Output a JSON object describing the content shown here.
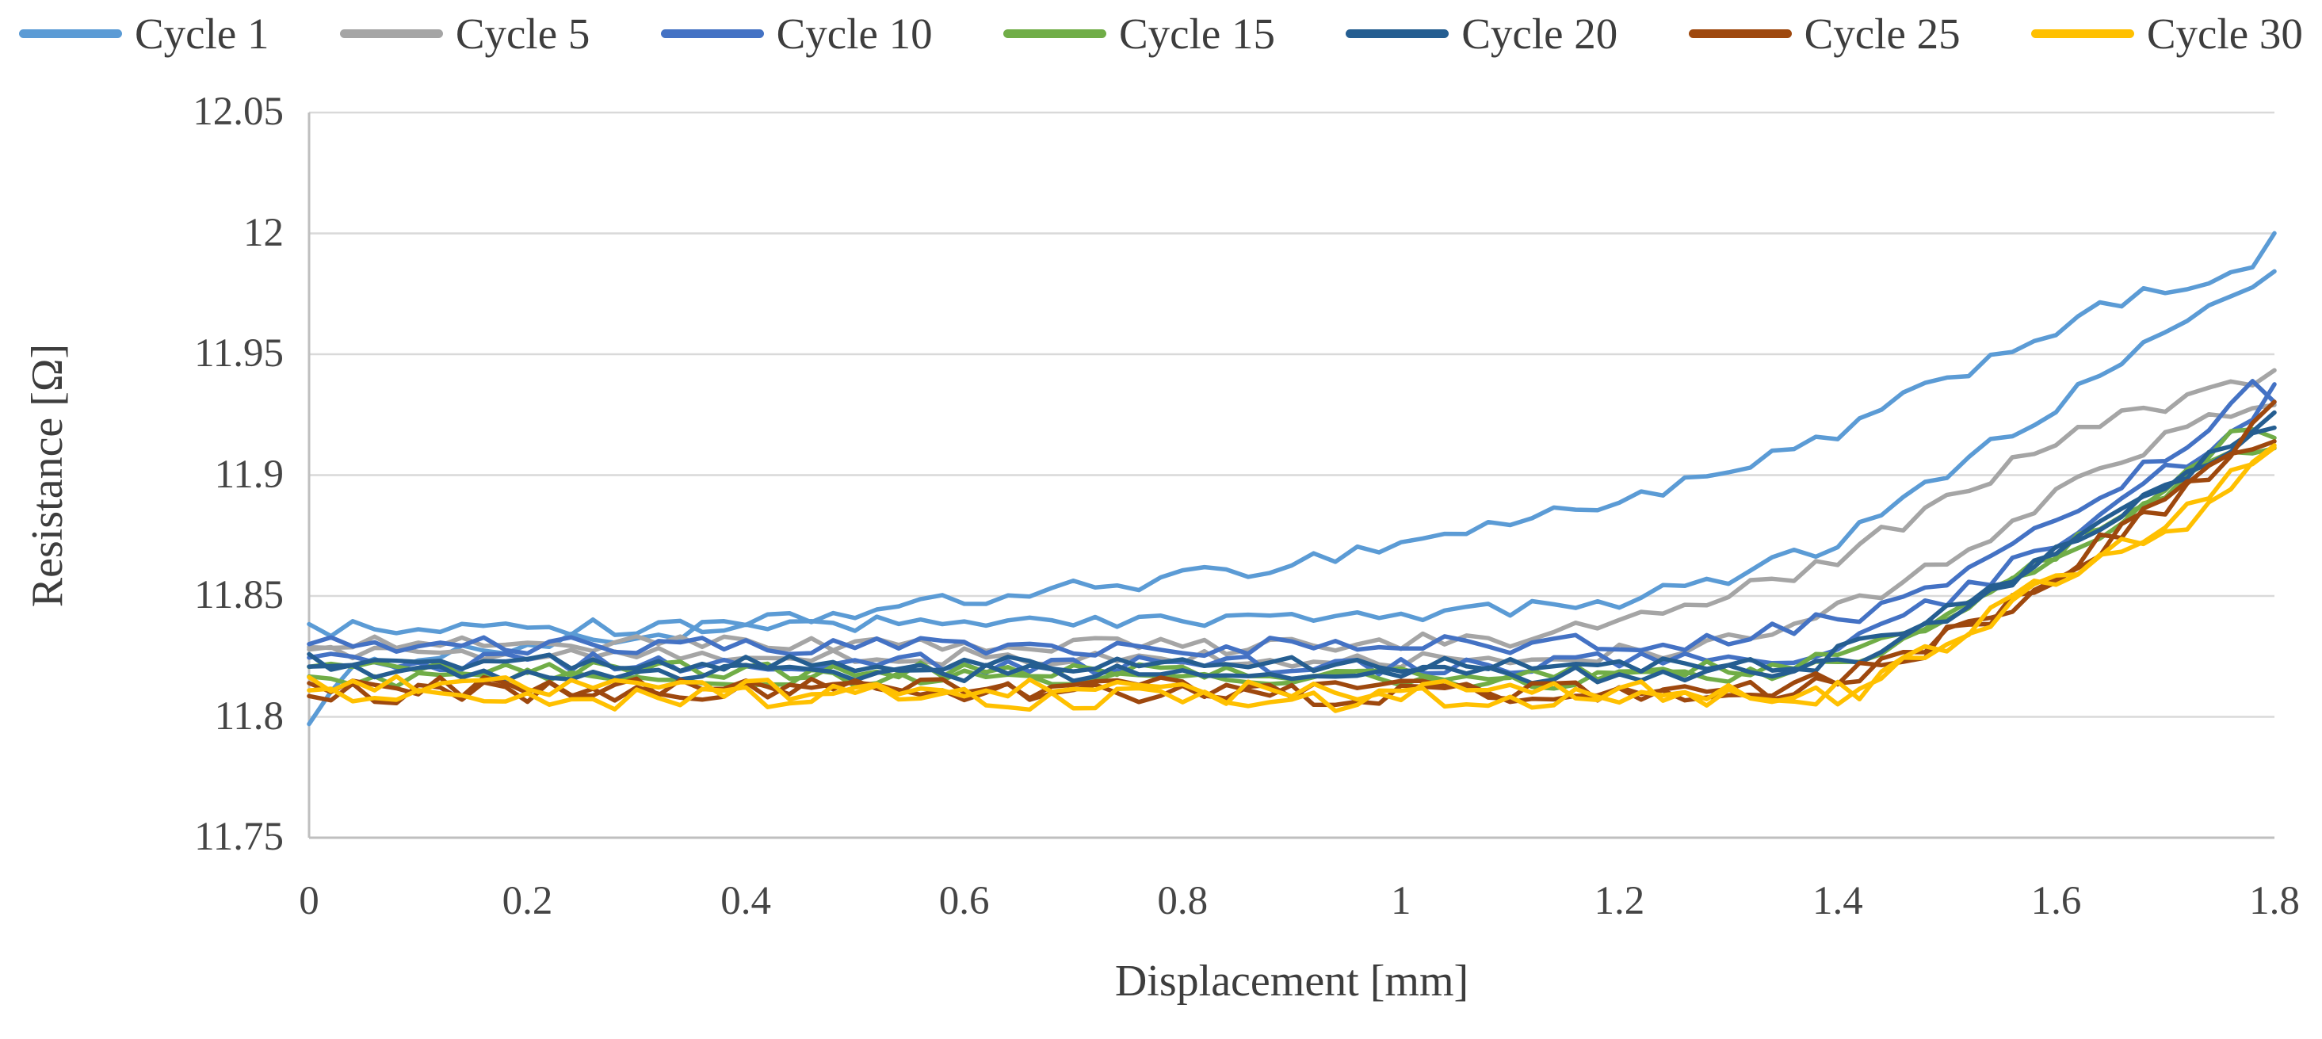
{
  "chart_data": {
    "type": "line",
    "title": "",
    "xlabel": "Displacement [mm]",
    "ylabel": "Resistance [Ω]",
    "xlim": [
      0,
      1.8
    ],
    "ylim": [
      11.75,
      12.05
    ],
    "grid": "horizontal",
    "legend_position": "top",
    "sample_step_mm": 0.02,
    "gridline_color": "#d9d9d9",
    "axis_line_color": "#bfbfbf",
    "tick_text_color": "#454545",
    "x_ticks": [
      {
        "value": 0,
        "label": "0"
      },
      {
        "value": 0.2,
        "label": "0.2"
      },
      {
        "value": 0.4,
        "label": "0.4"
      },
      {
        "value": 0.6,
        "label": "0.6"
      },
      {
        "value": 0.8,
        "label": "0.8"
      },
      {
        "value": 1,
        "label": "1"
      },
      {
        "value": 1.2,
        "label": "1.2"
      },
      {
        "value": 1.4,
        "label": "1.4"
      },
      {
        "value": 1.6,
        "label": "1.6"
      },
      {
        "value": 1.8,
        "label": "1.8"
      }
    ],
    "y_ticks": [
      {
        "value": 12.05,
        "label": "12.05"
      },
      {
        "value": 12,
        "label": "12"
      },
      {
        "value": 11.95,
        "label": "11.95"
      },
      {
        "value": 11.9,
        "label": "11.9"
      },
      {
        "value": 11.85,
        "label": "11.85"
      },
      {
        "value": 11.8,
        "label": "11.8"
      },
      {
        "value": 11.75,
        "label": "11.75"
      }
    ],
    "y_gridline_values": [
      12.05,
      12,
      11.95,
      11.9,
      11.85,
      11.8
    ],
    "series": [
      {
        "name": "Cycle 1",
        "color": "#5B9BD5",
        "noise": 0.0035,
        "branches": [
          {
            "keypoints": [
              [
                0,
                11.8
              ],
              [
                0.04,
                11.818
              ],
              [
                0.1,
                11.826
              ],
              [
                0.3,
                11.833
              ],
              [
                0.5,
                11.843
              ],
              [
                0.7,
                11.853
              ],
              [
                0.85,
                11.86
              ],
              [
                1.0,
                11.872
              ],
              [
                1.15,
                11.885
              ],
              [
                1.3,
                11.9
              ],
              [
                1.4,
                11.917
              ],
              [
                1.5,
                11.94
              ],
              [
                1.57,
                11.955
              ],
              [
                1.64,
                11.968
              ],
              [
                1.7,
                11.977
              ],
              [
                1.75,
                11.982
              ],
              [
                1.78,
                11.985
              ],
              [
                1.8,
                12.0
              ]
            ]
          },
          {
            "keypoints": [
              [
                0,
                11.836
              ],
              [
                0.3,
                11.837
              ],
              [
                0.6,
                11.839
              ],
              [
                0.9,
                11.841
              ],
              [
                1.05,
                11.843
              ],
              [
                1.2,
                11.848
              ],
              [
                1.3,
                11.857
              ],
              [
                1.4,
                11.872
              ],
              [
                1.47,
                11.893
              ],
              [
                1.55,
                11.915
              ],
              [
                1.62,
                11.935
              ],
              [
                1.7,
                11.958
              ],
              [
                1.76,
                11.972
              ],
              [
                1.8,
                11.984
              ]
            ]
          }
        ]
      },
      {
        "name": "Cycle 5",
        "color": "#A5A5A5",
        "noise": 0.0035,
        "branches": [
          {
            "keypoints": [
              [
                0,
                11.831
              ],
              [
                0.4,
                11.83
              ],
              [
                0.8,
                11.829
              ],
              [
                1.1,
                11.832
              ],
              [
                1.2,
                11.838
              ],
              [
                1.3,
                11.85
              ],
              [
                1.4,
                11.866
              ],
              [
                1.5,
                11.89
              ],
              [
                1.58,
                11.91
              ],
              [
                1.65,
                11.922
              ],
              [
                1.72,
                11.932
              ],
              [
                1.78,
                11.938
              ],
              [
                1.8,
                11.944
              ]
            ]
          },
          {
            "keypoints": [
              [
                0,
                11.826
              ],
              [
                0.5,
                11.825
              ],
              [
                1.0,
                11.824
              ],
              [
                1.25,
                11.827
              ],
              [
                1.35,
                11.838
              ],
              [
                1.45,
                11.852
              ],
              [
                1.55,
                11.877
              ],
              [
                1.65,
                11.905
              ],
              [
                1.73,
                11.922
              ],
              [
                1.8,
                11.93
              ]
            ]
          }
        ]
      },
      {
        "name": "Cycle 10",
        "color": "#4472C4",
        "noise": 0.004,
        "branches": [
          {
            "keypoints": [
              [
                0,
                11.83
              ],
              [
                0.5,
                11.829
              ],
              [
                1.0,
                11.829
              ],
              [
                1.3,
                11.832
              ],
              [
                1.42,
                11.843
              ],
              [
                1.52,
                11.862
              ],
              [
                1.6,
                11.88
              ],
              [
                1.68,
                11.902
              ],
              [
                1.74,
                11.92
              ],
              [
                1.78,
                11.938
              ],
              [
                1.8,
                11.93
              ]
            ]
          },
          {
            "keypoints": [
              [
                0,
                11.823
              ],
              [
                0.6,
                11.822
              ],
              [
                1.1,
                11.821
              ],
              [
                1.35,
                11.825
              ],
              [
                1.45,
                11.838
              ],
              [
                1.55,
                11.86
              ],
              [
                1.65,
                11.888
              ],
              [
                1.73,
                11.91
              ],
              [
                1.78,
                11.922
              ],
              [
                1.8,
                11.938
              ]
            ]
          }
        ]
      },
      {
        "name": "Cycle 15",
        "color": "#70AD47",
        "noise": 0.0035,
        "branches": [
          {
            "keypoints": [
              [
                0,
                11.82
              ],
              [
                0.6,
                11.819
              ],
              [
                1.1,
                11.818
              ],
              [
                1.35,
                11.82
              ],
              [
                1.48,
                11.838
              ],
              [
                1.58,
                11.862
              ],
              [
                1.66,
                11.885
              ],
              [
                1.73,
                11.905
              ],
              [
                1.77,
                11.922
              ],
              [
                1.8,
                11.915
              ]
            ]
          },
          {
            "keypoints": [
              [
                0,
                11.816
              ],
              [
                0.7,
                11.816
              ],
              [
                1.2,
                11.815
              ],
              [
                1.4,
                11.82
              ],
              [
                1.5,
                11.84
              ],
              [
                1.6,
                11.865
              ],
              [
                1.7,
                11.893
              ],
              [
                1.76,
                11.908
              ],
              [
                1.8,
                11.912
              ]
            ]
          }
        ]
      },
      {
        "name": "Cycle 20",
        "color": "#255E91",
        "noise": 0.0035,
        "branches": [
          {
            "keypoints": [
              [
                0,
                11.823
              ],
              [
                0.5,
                11.822
              ],
              [
                1.0,
                11.821
              ],
              [
                1.38,
                11.822
              ],
              [
                1.5,
                11.845
              ],
              [
                1.6,
                11.868
              ],
              [
                1.68,
                11.89
              ],
              [
                1.76,
                11.912
              ],
              [
                1.8,
                11.925
              ]
            ]
          },
          {
            "keypoints": [
              [
                0,
                11.818
              ],
              [
                0.6,
                11.818
              ],
              [
                1.2,
                11.817
              ],
              [
                1.42,
                11.822
              ],
              [
                1.52,
                11.845
              ],
              [
                1.62,
                11.872
              ],
              [
                1.7,
                11.895
              ],
              [
                1.77,
                11.915
              ],
              [
                1.8,
                11.92
              ]
            ]
          }
        ]
      },
      {
        "name": "Cycle 25",
        "color": "#9E480E",
        "noise": 0.0045,
        "branches": [
          {
            "keypoints": [
              [
                0,
                11.813
              ],
              [
                0.5,
                11.812
              ],
              [
                1.0,
                11.812
              ],
              [
                1.35,
                11.81
              ],
              [
                1.45,
                11.822
              ],
              [
                1.55,
                11.845
              ],
              [
                1.63,
                11.868
              ],
              [
                1.7,
                11.89
              ],
              [
                1.75,
                11.905
              ],
              [
                1.78,
                11.922
              ],
              [
                1.8,
                11.93
              ]
            ]
          },
          {
            "keypoints": [
              [
                0,
                11.81
              ],
              [
                0.6,
                11.81
              ],
              [
                1.2,
                11.809
              ],
              [
                1.4,
                11.812
              ],
              [
                1.5,
                11.832
              ],
              [
                1.6,
                11.858
              ],
              [
                1.68,
                11.882
              ],
              [
                1.74,
                11.9
              ],
              [
                1.8,
                11.915
              ]
            ]
          }
        ]
      },
      {
        "name": "Cycle 30",
        "color": "#FFC000",
        "noise": 0.005,
        "branches": [
          {
            "keypoints": [
              [
                0,
                11.812
              ],
              [
                0.5,
                11.811
              ],
              [
                1.0,
                11.81
              ],
              [
                1.4,
                11.81
              ],
              [
                1.5,
                11.83
              ],
              [
                1.58,
                11.852
              ],
              [
                1.65,
                11.868
              ],
              [
                1.72,
                11.882
              ],
              [
                1.77,
                11.9
              ],
              [
                1.8,
                11.913
              ]
            ]
          },
          {
            "keypoints": [
              [
                0,
                11.808
              ],
              [
                0.6,
                11.808
              ],
              [
                1.2,
                11.807
              ],
              [
                1.42,
                11.81
              ],
              [
                1.52,
                11.835
              ],
              [
                1.62,
                11.86
              ],
              [
                1.7,
                11.88
              ],
              [
                1.76,
                11.898
              ],
              [
                1.8,
                11.91
              ]
            ]
          }
        ]
      }
    ]
  }
}
